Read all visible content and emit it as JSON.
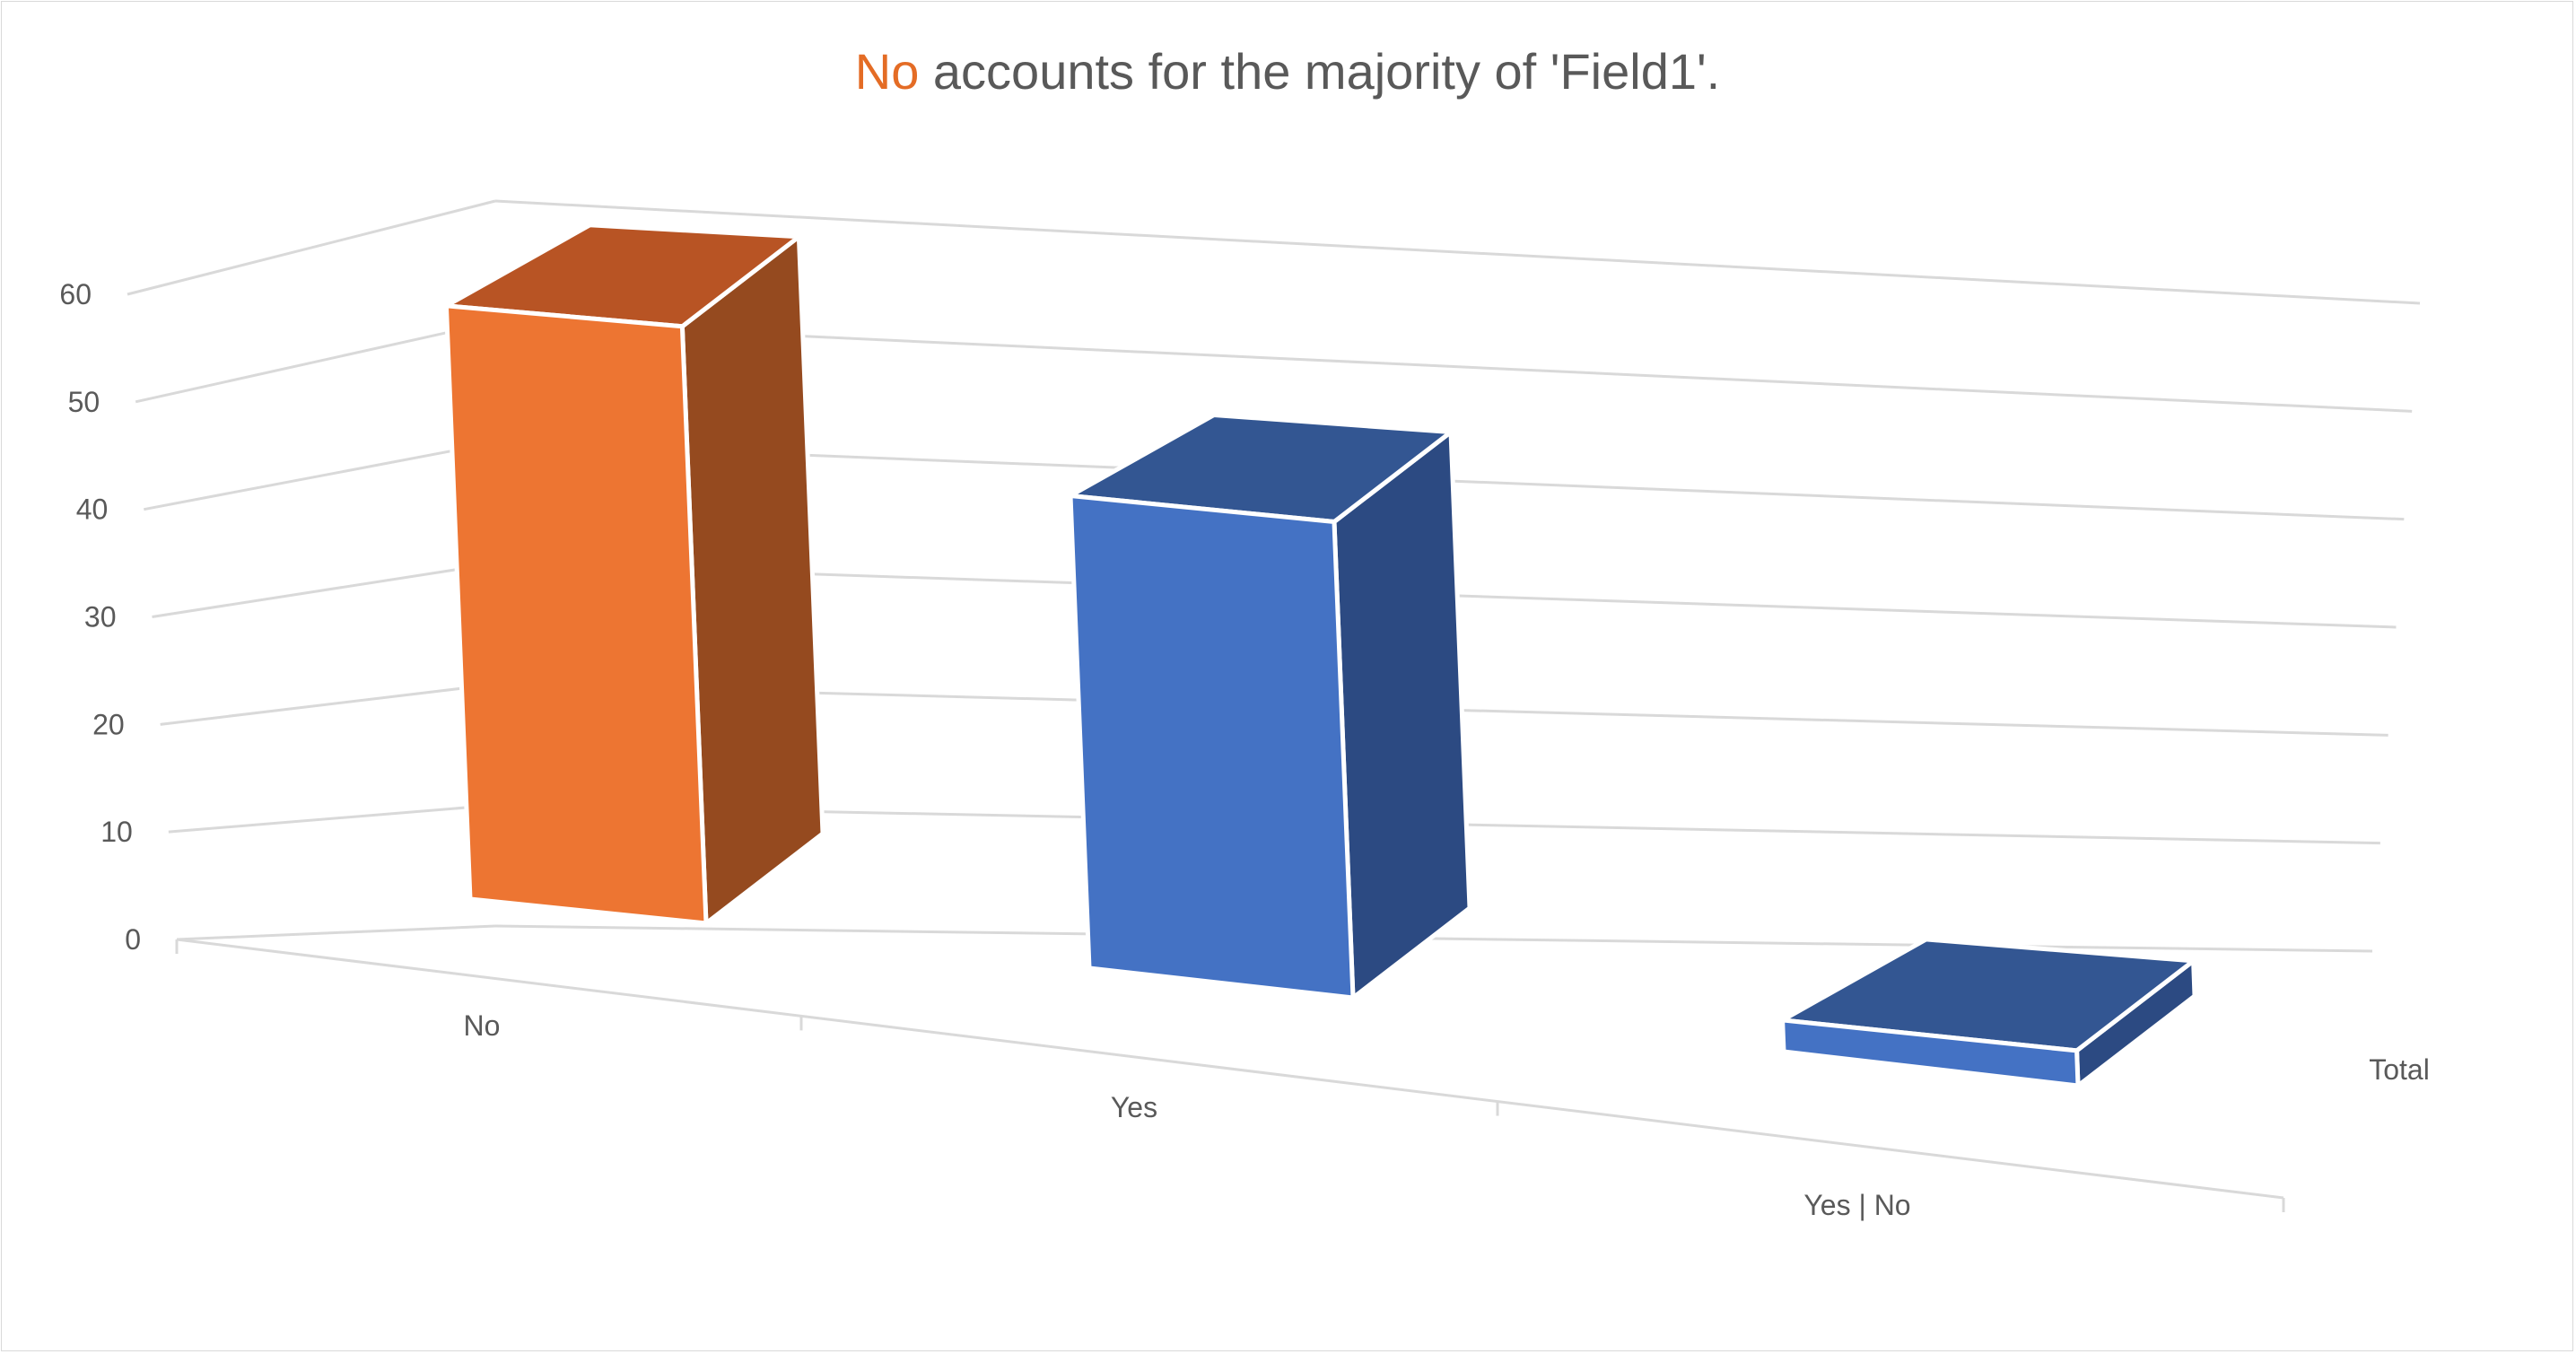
{
  "chart_data": {
    "type": "bar",
    "title_parts": [
      {
        "text": "No",
        "color": "#e46c25"
      },
      {
        "text": " accounts for the majority of 'Field1'.",
        "color": "#595959"
      }
    ],
    "categories": [
      "No",
      "Yes",
      "Yes | No"
    ],
    "values": [
      57,
      45,
      3
    ],
    "bar_colors": [
      "#ed7532",
      "#4472c4",
      "#4472c4"
    ],
    "bar_top_colors": [
      "#b85424",
      "#335692",
      "#335692"
    ],
    "bar_side_colors": [
      "#954a1f",
      "#2c4a82",
      "#2c4a82"
    ],
    "y_ticks": [
      0,
      10,
      20,
      30,
      40,
      50,
      60
    ],
    "ylim": [
      0,
      60
    ],
    "series_axis_label": "Total",
    "gridlines": true,
    "view": "3d-clustered-column",
    "xlabel": "",
    "ylabel": ""
  }
}
